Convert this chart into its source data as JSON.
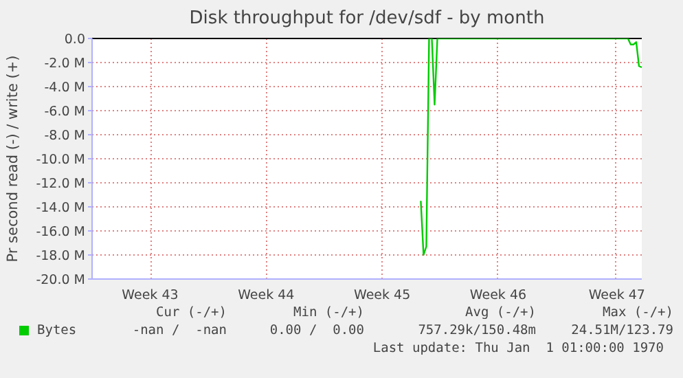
{
  "chart_data": {
    "type": "line",
    "title": "Disk throughput for /dev/sdf - by month",
    "ylabel": "Pr second read (-) / write (+)",
    "categories": [
      null,
      null,
      null,
      null,
      null,
      null,
      null,
      null,
      null,
      null,
      null,
      null,
      null,
      null,
      null,
      null,
      null,
      null,
      null,
      null,
      null,
      "Week 43",
      null,
      null,
      null,
      null,
      null,
      null,
      null,
      null,
      null,
      null,
      null,
      null,
      null,
      null,
      null,
      null,
      null,
      null,
      null,
      null,
      null,
      null,
      null,
      null,
      null,
      null,
      null,
      null,
      null,
      null,
      null,
      null,
      null,
      null,
      null,
      null,
      null,
      null,
      null,
      null,
      null,
      "Week 44",
      null,
      null,
      null,
      null,
      null,
      null,
      null,
      null,
      null,
      null,
      null,
      null,
      null,
      null,
      null,
      null,
      null,
      null,
      null,
      null,
      null,
      null,
      null,
      null,
      null,
      null,
      null,
      null,
      null,
      null,
      null,
      null,
      null,
      null,
      null,
      null,
      null,
      null,
      null,
      null,
      null,
      "Week 45",
      null,
      null,
      null,
      null,
      null,
      null,
      null,
      null,
      null,
      null,
      null,
      null,
      null,
      null,
      null,
      null,
      null,
      null,
      null,
      null,
      null,
      null,
      null,
      null,
      null,
      null,
      null,
      null,
      null,
      null,
      null,
      null,
      null,
      null,
      null,
      null,
      null,
      null,
      null,
      null,
      null,
      "Week 46",
      null,
      null,
      null,
      null,
      null,
      null,
      null,
      null,
      null,
      null,
      null,
      null,
      null,
      null,
      null,
      null,
      null,
      null,
      null,
      null,
      null,
      null,
      null,
      null,
      null,
      null,
      null,
      null,
      null,
      null,
      null,
      null,
      null,
      null,
      null,
      null,
      null,
      null,
      null,
      null,
      null,
      null,
      "Week 47",
      null,
      null,
      null,
      null,
      null,
      null,
      null,
      null,
      null
    ],
    "series": [
      {
        "name": "Bytes",
        "color": "#00cc00",
        "values": [
          null,
          null,
          null,
          null,
          null,
          null,
          null,
          null,
          null,
          null,
          null,
          null,
          null,
          null,
          null,
          null,
          null,
          null,
          null,
          null,
          null,
          null,
          null,
          null,
          null,
          null,
          null,
          null,
          null,
          null,
          null,
          null,
          null,
          null,
          null,
          null,
          null,
          null,
          null,
          null,
          null,
          null,
          null,
          null,
          null,
          null,
          null,
          null,
          null,
          null,
          null,
          null,
          null,
          null,
          null,
          null,
          null,
          null,
          null,
          null,
          null,
          null,
          null,
          null,
          null,
          null,
          null,
          null,
          null,
          null,
          null,
          null,
          null,
          null,
          null,
          null,
          null,
          null,
          null,
          null,
          null,
          null,
          null,
          null,
          null,
          null,
          null,
          null,
          null,
          null,
          null,
          null,
          null,
          null,
          null,
          null,
          null,
          null,
          null,
          null,
          null,
          null,
          null,
          null,
          null,
          null,
          null,
          null,
          null,
          null,
          null,
          null,
          null,
          null,
          null,
          null,
          null,
          null,
          null,
          -13.5,
          -18.0,
          -17.3,
          0,
          0,
          -5.5,
          0,
          0,
          0,
          0,
          0,
          0,
          0,
          0,
          0,
          0,
          0,
          0,
          0,
          0,
          0,
          0,
          0,
          0,
          0,
          0,
          0,
          0,
          0,
          0,
          0,
          0,
          0,
          0,
          0,
          0,
          0,
          0,
          0,
          0,
          0,
          0,
          0,
          0,
          0,
          0,
          0,
          0,
          0,
          0,
          0,
          0,
          0,
          0,
          0,
          0,
          0,
          0,
          0,
          0,
          0,
          0,
          0,
          0,
          0,
          0,
          0,
          0,
          0,
          0,
          0,
          0,
          0,
          0,
          0,
          0,
          -0.5,
          -0.5,
          -0.3,
          -2.3,
          -2.4
        ]
      }
    ],
    "ylim": [
      -20,
      0
    ],
    "yticks": [
      {
        "value": 0,
        "label": "0.0"
      },
      {
        "value": -2,
        "label": "-2.0 M"
      },
      {
        "value": -4,
        "label": "-4.0 M"
      },
      {
        "value": -6,
        "label": "-6.0 M"
      },
      {
        "value": -8,
        "label": "-8.0 M"
      },
      {
        "value": -10,
        "label": "-10.0 M"
      },
      {
        "value": -12,
        "label": "-12.0 M"
      },
      {
        "value": -14,
        "label": "-14.0 M"
      },
      {
        "value": -16,
        "label": "-16.0 M"
      },
      {
        "value": -18,
        "label": "-18.0 M"
      },
      {
        "value": -20,
        "label": "-20.0 M"
      }
    ],
    "ref_lines": [
      {
        "axis": "y",
        "value": 0,
        "color": "#000000"
      }
    ],
    "grid": true,
    "legend": "bottom",
    "line_style": "solid",
    "annotations": [
      "Cur (-/+)",
      "Min (-/+)",
      "Avg (-/+)",
      "Max (-/+)",
      "-nan /  -nan",
      "0.00 /  0.00",
      "757.29k/150.48m",
      "24.51M/123.79",
      "Last update: Thu Jan  1 01:00:00 1970"
    ]
  }
}
